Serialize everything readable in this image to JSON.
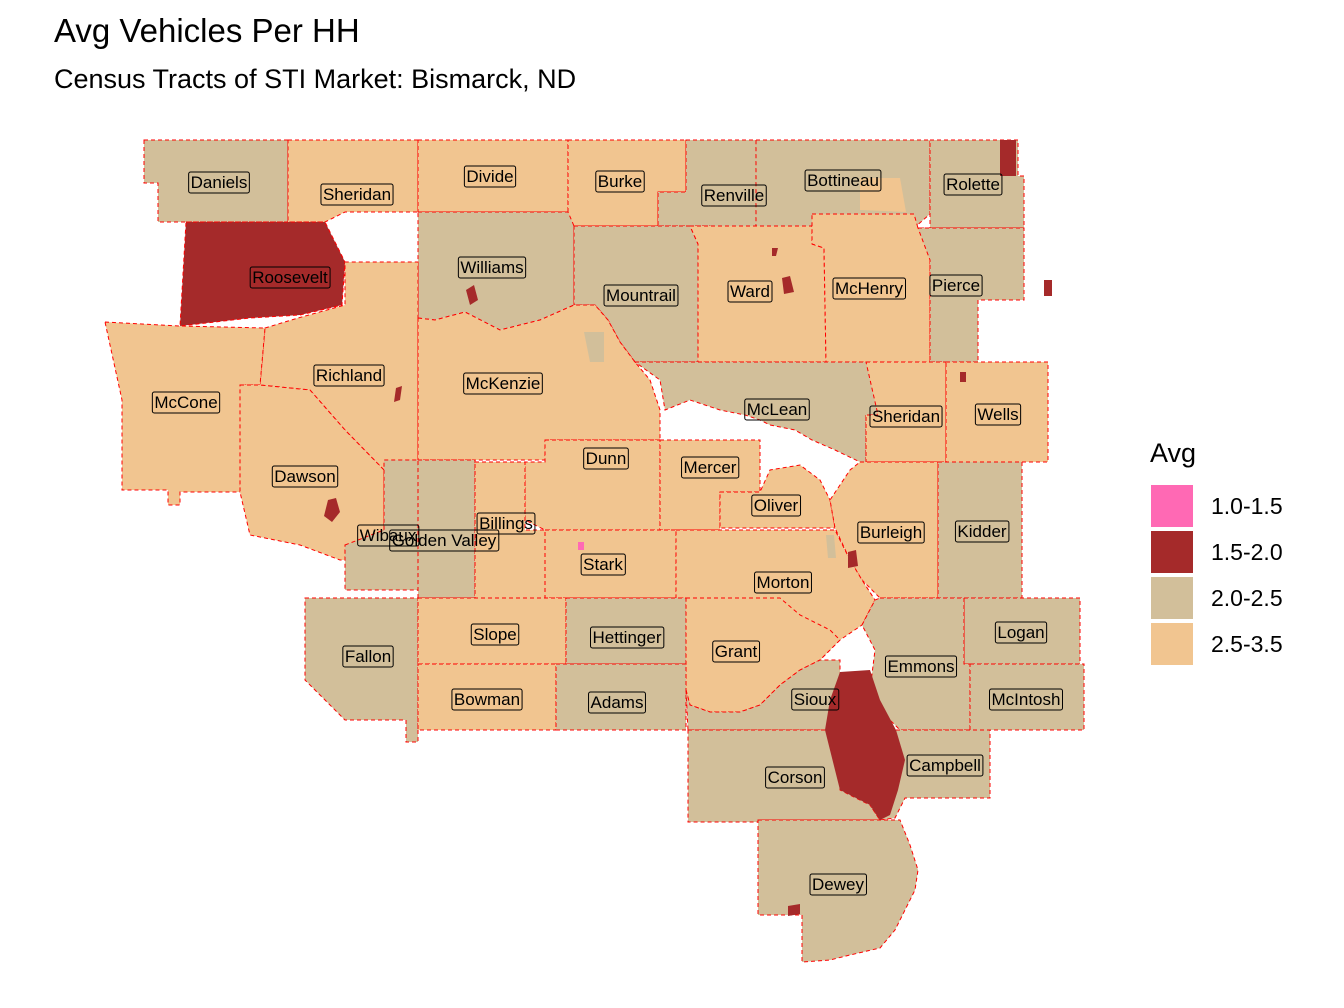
{
  "header": {
    "title": "Avg Vehicles Per HH",
    "subtitle": "Census Tracts of STI Market: Bismarck, ND"
  },
  "colors": {
    "1.0-1.5": "#ff69b4",
    "1.5-2.0": "#a52a2a",
    "2.0-2.5": "#d2bf9a",
    "2.5-3.5": "#f1c590",
    "boundary": "#ff0000"
  },
  "legend": {
    "title": "Avg",
    "items": [
      {
        "label": "1.0-1.5",
        "color": "#ff69b4"
      },
      {
        "label": "1.5-2.0",
        "color": "#a52a2a"
      },
      {
        "label": "2.0-2.5",
        "color": "#d2bf9a"
      },
      {
        "label": "2.5-3.5",
        "color": "#f1c590"
      }
    ]
  },
  "counties": [
    {
      "name": "Daniels",
      "class": "2.0-2.5"
    },
    {
      "name": "Sheridan",
      "class": "2.5-3.5"
    },
    {
      "name": "Divide",
      "class": "2.5-3.5"
    },
    {
      "name": "Burke",
      "class": "2.5-3.5"
    },
    {
      "name": "Renville",
      "class": "2.0-2.5"
    },
    {
      "name": "Bottineau",
      "class": "2.0-2.5"
    },
    {
      "name": "Rolette",
      "class": "2.0-2.5"
    },
    {
      "name": "Roosevelt",
      "class": "1.5-2.0"
    },
    {
      "name": "Williams",
      "class": "2.0-2.5"
    },
    {
      "name": "Mountrail",
      "class": "2.0-2.5"
    },
    {
      "name": "Ward",
      "class": "2.5-3.5"
    },
    {
      "name": "McHenry",
      "class": "2.5-3.5"
    },
    {
      "name": "Pierce",
      "class": "2.0-2.5"
    },
    {
      "name": "Richland",
      "class": "2.5-3.5"
    },
    {
      "name": "McCone",
      "class": "2.5-3.5"
    },
    {
      "name": "McKenzie",
      "class": "2.5-3.5"
    },
    {
      "name": "McLean",
      "class": "2.0-2.5"
    },
    {
      "name": "Sheridan",
      "class": "2.5-3.5"
    },
    {
      "name": "Wells",
      "class": "2.5-3.5"
    },
    {
      "name": "Dawson",
      "class": "2.5-3.5"
    },
    {
      "name": "Dunn",
      "class": "2.5-3.5"
    },
    {
      "name": "Mercer",
      "class": "2.5-3.5"
    },
    {
      "name": "Oliver",
      "class": "2.5-3.5"
    },
    {
      "name": "Wibaux",
      "class": "2.0-2.5"
    },
    {
      "name": "Golden Valley",
      "class": "2.0-2.5"
    },
    {
      "name": "Billings",
      "class": "2.5-3.5"
    },
    {
      "name": "Stark",
      "class": "2.5-3.5"
    },
    {
      "name": "Burleigh",
      "class": "2.5-3.5"
    },
    {
      "name": "Kidder",
      "class": "2.0-2.5"
    },
    {
      "name": "Morton",
      "class": "2.5-3.5"
    },
    {
      "name": "Fallon",
      "class": "2.0-2.5"
    },
    {
      "name": "Slope",
      "class": "2.5-3.5"
    },
    {
      "name": "Hettinger",
      "class": "2.0-2.5"
    },
    {
      "name": "Grant",
      "class": "2.5-3.5"
    },
    {
      "name": "Logan",
      "class": "2.0-2.5"
    },
    {
      "name": "Emmons",
      "class": "2.0-2.5"
    },
    {
      "name": "Bowman",
      "class": "2.5-3.5"
    },
    {
      "name": "Adams",
      "class": "2.0-2.5"
    },
    {
      "name": "Sioux",
      "class": "2.0-2.5"
    },
    {
      "name": "McIntosh",
      "class": "2.0-2.5"
    },
    {
      "name": "Corson",
      "class": "2.0-2.5"
    },
    {
      "name": "Campbell",
      "class": "2.0-2.5"
    },
    {
      "name": "Dewey",
      "class": "2.0-2.5"
    }
  ]
}
